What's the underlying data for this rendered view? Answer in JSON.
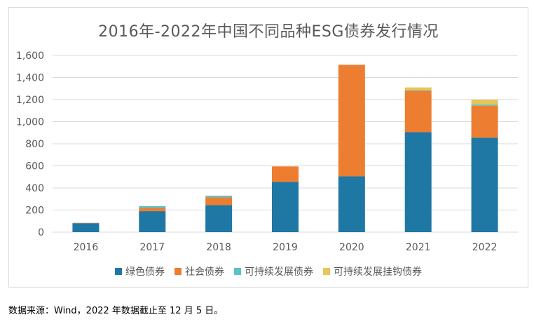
{
  "chart_data": {
    "type": "bar",
    "stacked": true,
    "title": "2016年-2022年中国不同品种ESG债券发行情况",
    "xlabel": "",
    "ylabel": "",
    "categories": [
      "2016",
      "2017",
      "2018",
      "2019",
      "2020",
      "2021",
      "2022"
    ],
    "ylim": [
      0,
      1600
    ],
    "yticks": [
      0,
      200,
      400,
      600,
      800,
      1000,
      1200,
      1400,
      1600
    ],
    "ytick_labels": [
      "0",
      "200",
      "400",
      "600",
      "800",
      "1,000",
      "1,200",
      "1,400",
      "1,600"
    ],
    "grid": true,
    "legend_position": "bottom",
    "series": [
      {
        "name": "绿色债券",
        "color": "#1f77a4",
        "values": [
          80,
          190,
          245,
          455,
          505,
          905,
          855
        ]
      },
      {
        "name": "社会债券",
        "color": "#ed7d31",
        "values": [
          3,
          30,
          70,
          140,
          1010,
          375,
          290
        ]
      },
      {
        "name": "可持续发展债券",
        "color": "#5bc0c8",
        "values": [
          2,
          15,
          15,
          0,
          0,
          5,
          10
        ]
      },
      {
        "name": "可持续发展挂钩债券",
        "color": "#e6c55a",
        "values": [
          0,
          0,
          0,
          0,
          0,
          25,
          45
        ]
      }
    ]
  },
  "source_note": "数据来源：Wind，2022 年数据截止至 12 月 5 日。"
}
